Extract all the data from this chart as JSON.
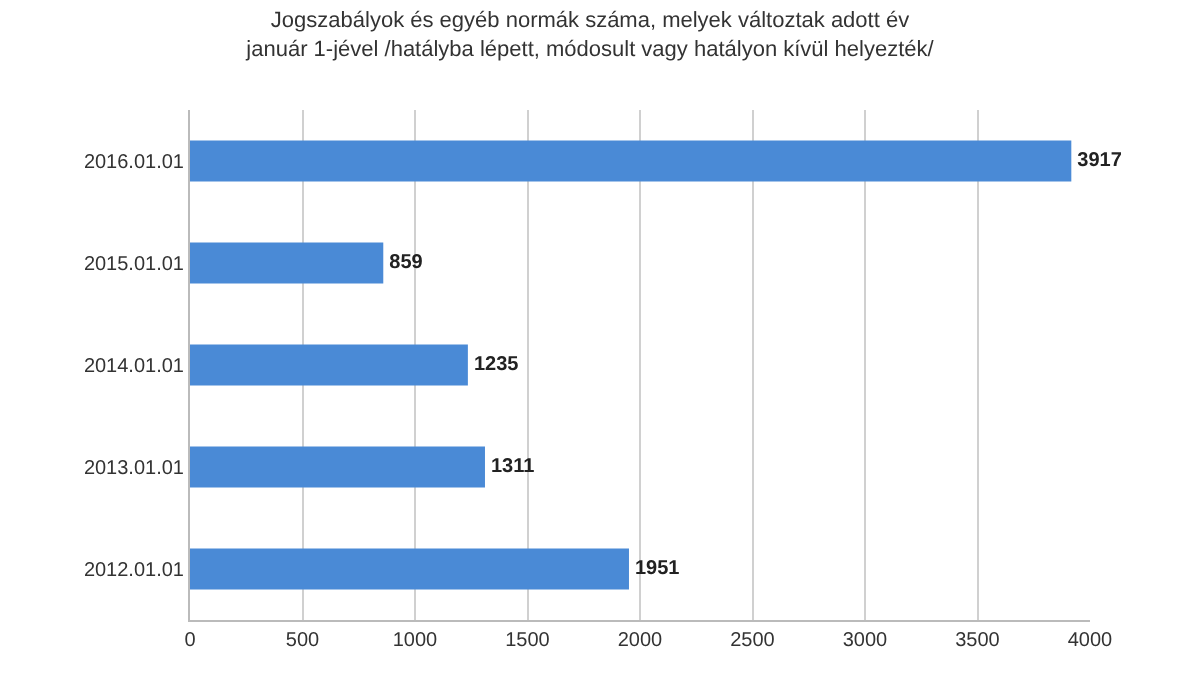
{
  "chart_data": {
    "type": "bar",
    "orientation": "horizontal",
    "title": "Jogszabályok és egyéb normák száma, melyek változtak adott év\njanuár 1-jével /hatályba lépett, módosult vagy hatályon kívül helyezték/",
    "categories": [
      "2016.01.01",
      "2015.01.01",
      "2014.01.01",
      "2013.01.01",
      "2012.01.01"
    ],
    "values": [
      3917,
      859,
      1235,
      1311,
      1951
    ],
    "color": "#4a8ad6",
    "xlim": [
      0,
      4000
    ],
    "xticks": [
      0,
      500,
      1000,
      1500,
      2000,
      2500,
      3000,
      3500,
      4000
    ],
    "grid": "x",
    "data_labels": true
  }
}
